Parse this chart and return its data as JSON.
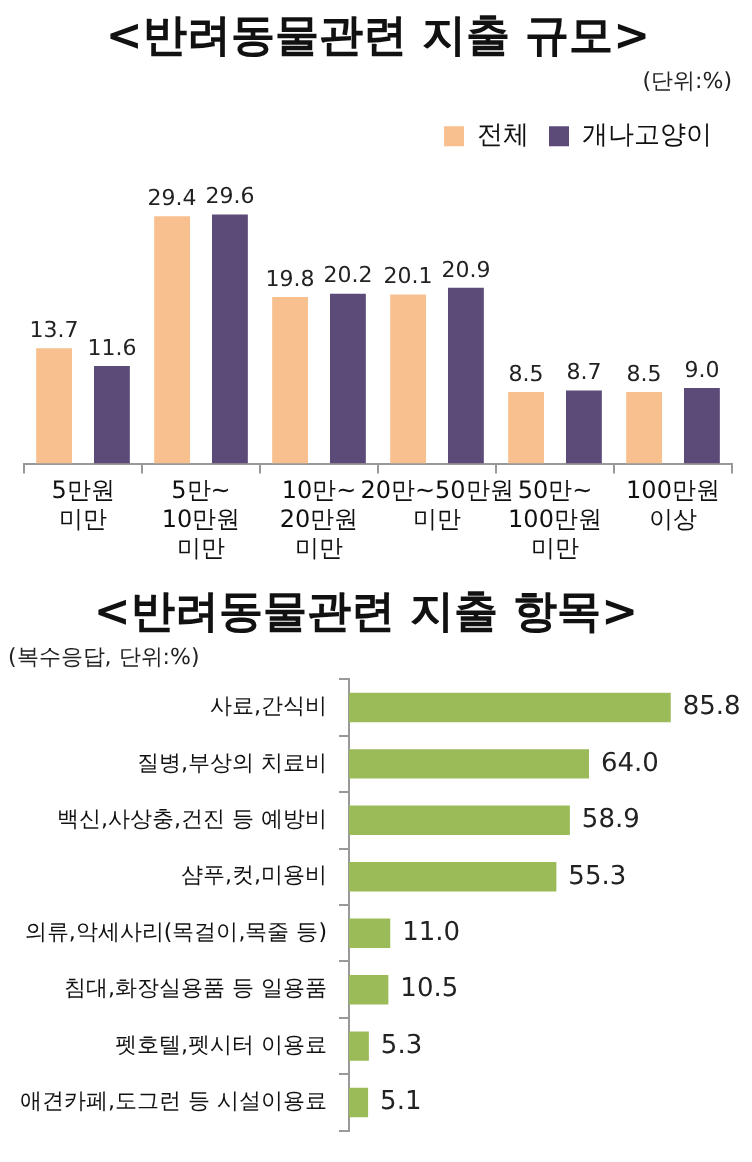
{
  "chart_data": [
    {
      "type": "bar",
      "title": "<반려동물관련 지출 규모>",
      "subtitle": "(단위:%)",
      "categories": [
        "5만원 미만",
        "5만~ 10만원 미만",
        "10만~ 20만원 미만",
        "20만~50만원 미만",
        "50만~ 100만원 미만",
        "100만원 이상"
      ],
      "series": [
        {
          "name": "전체",
          "color": "#f9c08f",
          "values": [
            13.7,
            29.4,
            19.8,
            20.1,
            8.5,
            8.5
          ],
          "value_labels": [
            "13.7",
            "29.4",
            "19.8",
            "20.1",
            "8.5",
            "8.5"
          ]
        },
        {
          "name": "개나고양이",
          "color": "#5c4a78",
          "values": [
            11.6,
            29.6,
            20.2,
            20.9,
            8.7,
            9.0
          ],
          "value_labels": [
            "11.6",
            "29.6",
            "20.2",
            "20.9",
            "8.7",
            "9.0"
          ]
        }
      ],
      "legend": "top right"
    },
    {
      "type": "bar",
      "orientation": "horizontal",
      "title": "<반려동물관련 지출 항목>",
      "subtitle": "(복수응답, 단위:%)",
      "categories": [
        "사료,간식비",
        "질병,부상의 치료비",
        "백신,사상충,건진 등 예방비",
        "샴푸,컷,미용비",
        "의류,악세사리(목걸이,목줄 등)",
        "침대,화장실용품 등 일용품",
        "펫호텔,펫시터 이용료",
        "애견카페,도그런 등 시설이용료"
      ],
      "values": [
        85.8,
        64.0,
        58.9,
        55.3,
        11.0,
        10.5,
        5.3,
        5.1
      ],
      "value_labels": [
        "85.8",
        "64.0",
        "58.9",
        "55.3",
        "11.0",
        "10.5",
        "5.3",
        "5.1"
      ],
      "color": "#9bbb59"
    }
  ]
}
